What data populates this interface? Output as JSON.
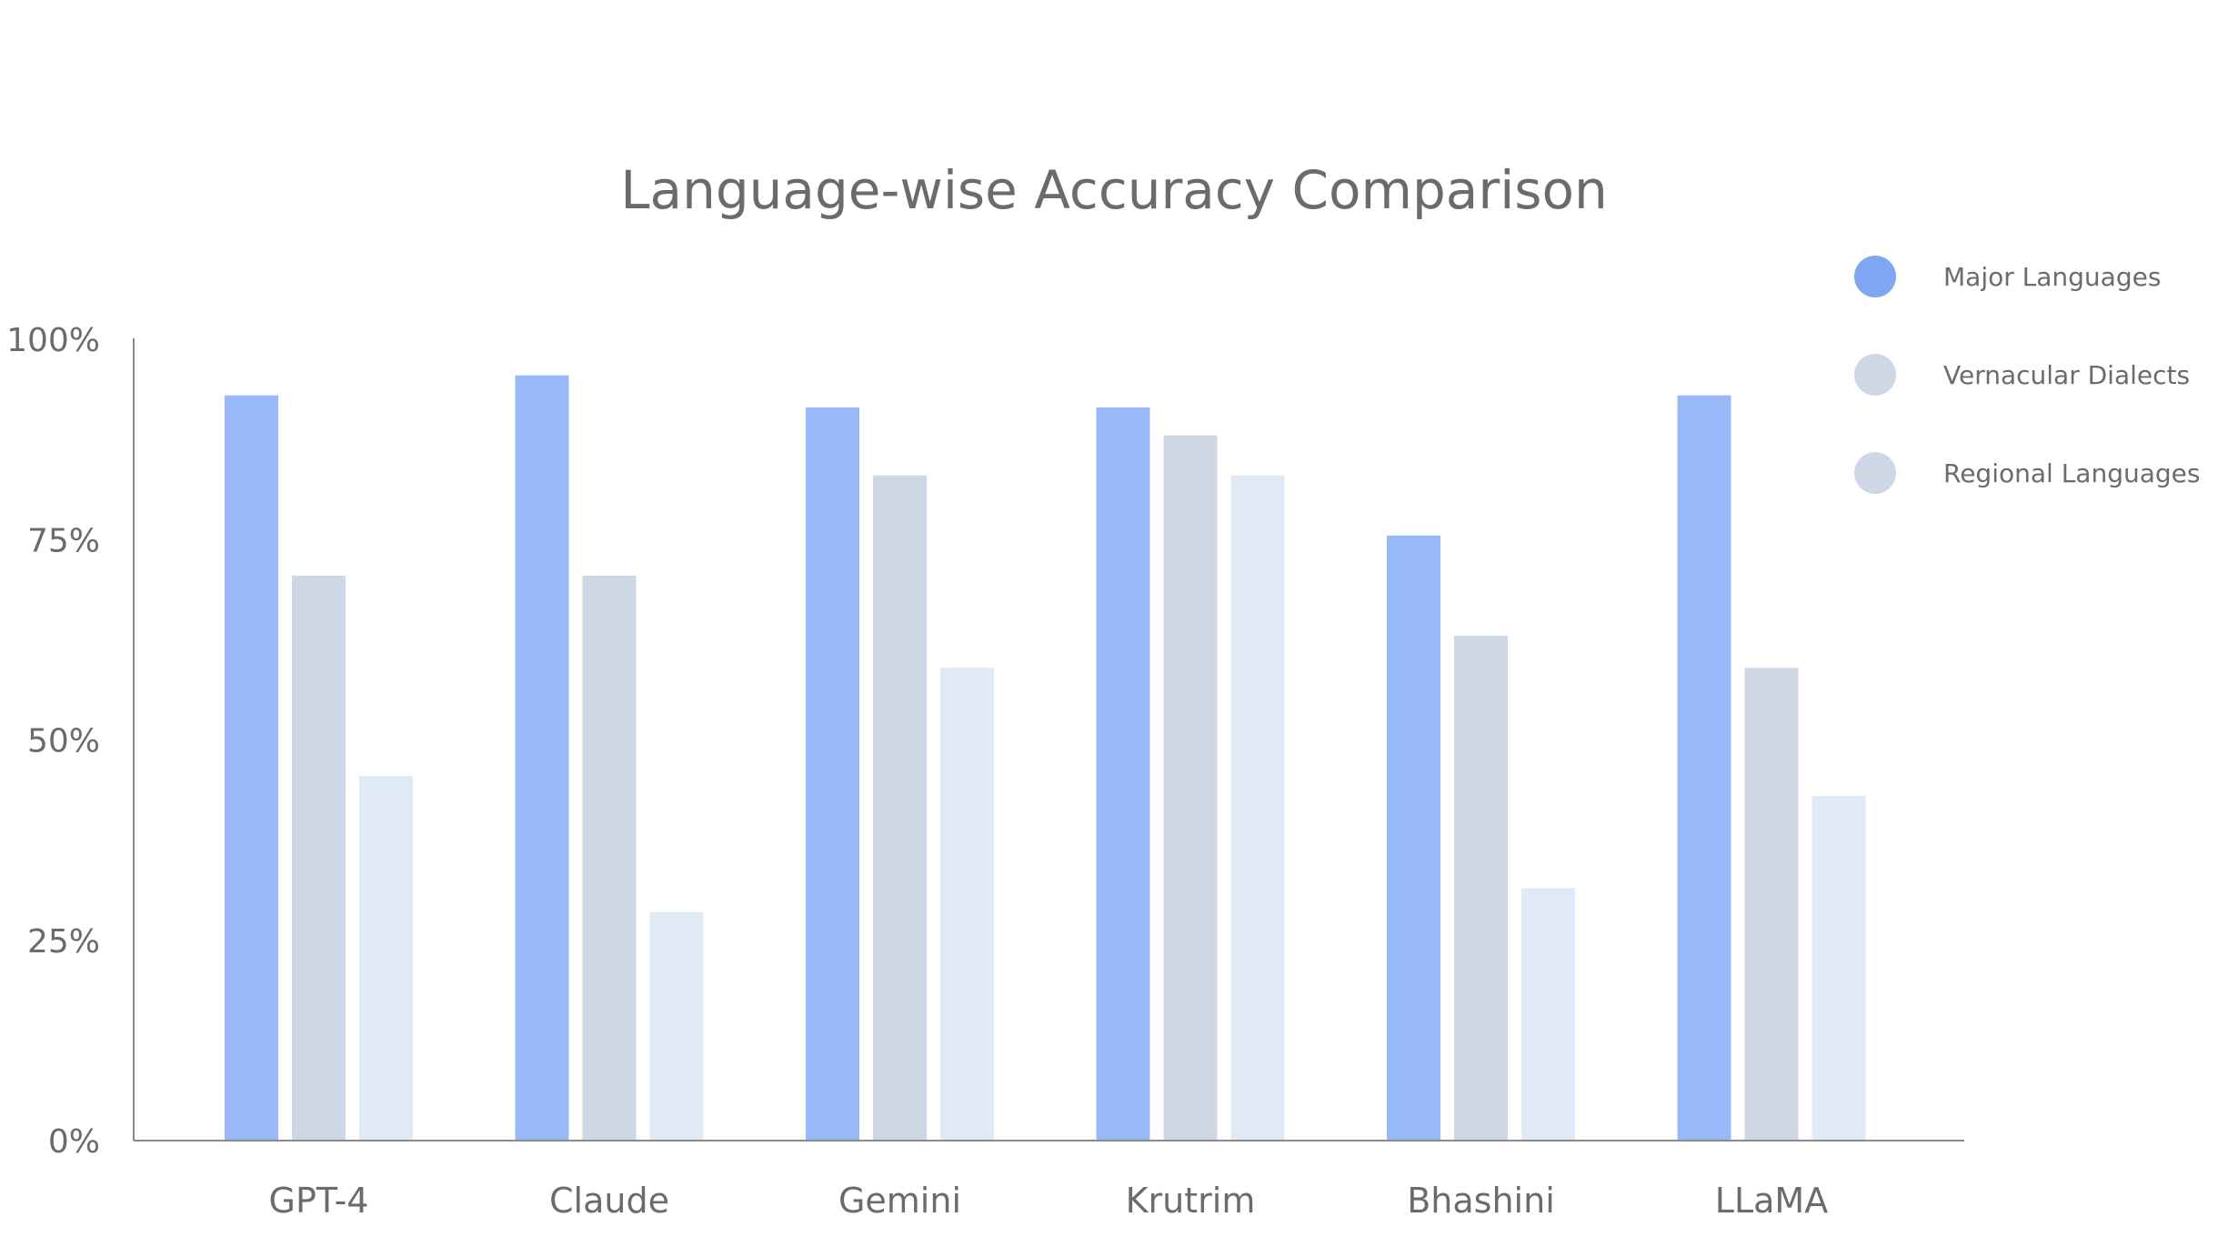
{
  "chart_data": {
    "type": "bar",
    "title": "Language-wise Accuracy Comparison",
    "xlabel": "",
    "ylabel": "",
    "categories": [
      "GPT-4",
      "Claude",
      "Gemini",
      "Krutrim",
      "Bhashini",
      "LLaMA"
    ],
    "series": [
      {
        "name": "Major Languages",
        "color": "#99b8f7",
        "legend_color": "#7fa6f3",
        "values": [
          93,
          95.5,
          91.5,
          91.5,
          75.5,
          93
        ]
      },
      {
        "name": "Vernacular Dialects",
        "color": "#cdd7e6",
        "legend_color": "#cdd7e6",
        "values": [
          70.5,
          70.5,
          83,
          88,
          63,
          59
        ]
      },
      {
        "name": "Regional Languages",
        "color": "#e0e9f7",
        "legend_color": "#cdd7e6",
        "values": [
          45.5,
          28.5,
          59,
          83,
          31.5,
          43
        ]
      }
    ],
    "ylim": [
      0,
      100
    ],
    "yticks": [
      0,
      25,
      50,
      75,
      100
    ],
    "ytick_labels": [
      "0%",
      "25%",
      "50%",
      "75%",
      "100%"
    ],
    "grid": false,
    "legend_position": "top-right",
    "axis_color": "#8a8a8a",
    "text_color": "#6b6b6b"
  }
}
